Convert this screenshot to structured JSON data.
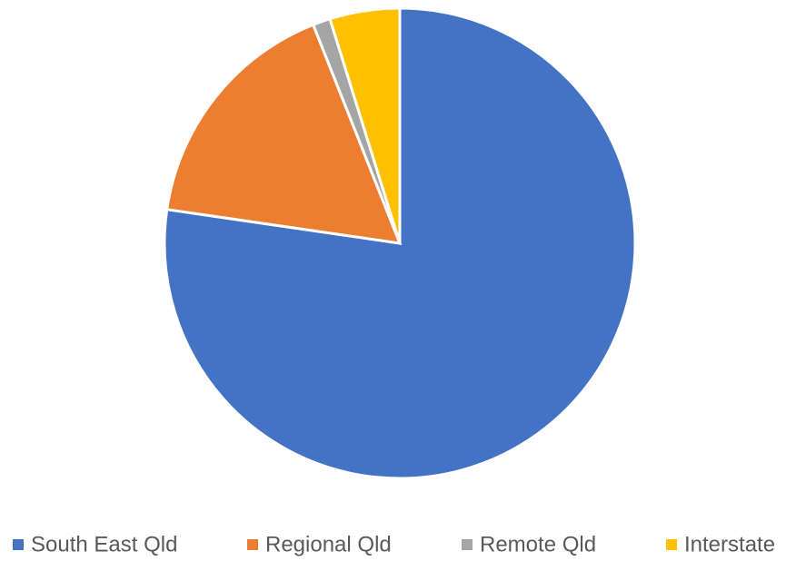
{
  "chart_data": {
    "type": "pie",
    "categories": [
      "South East Qld",
      "Regional Qld",
      "Remote Qld",
      "Interstate"
    ],
    "values": [
      77.3,
      16.7,
      1.2,
      4.8
    ],
    "colors": [
      "#4472c4",
      "#ed7d31",
      "#a5a5a5",
      "#ffc000"
    ],
    "legend": "bottom"
  }
}
